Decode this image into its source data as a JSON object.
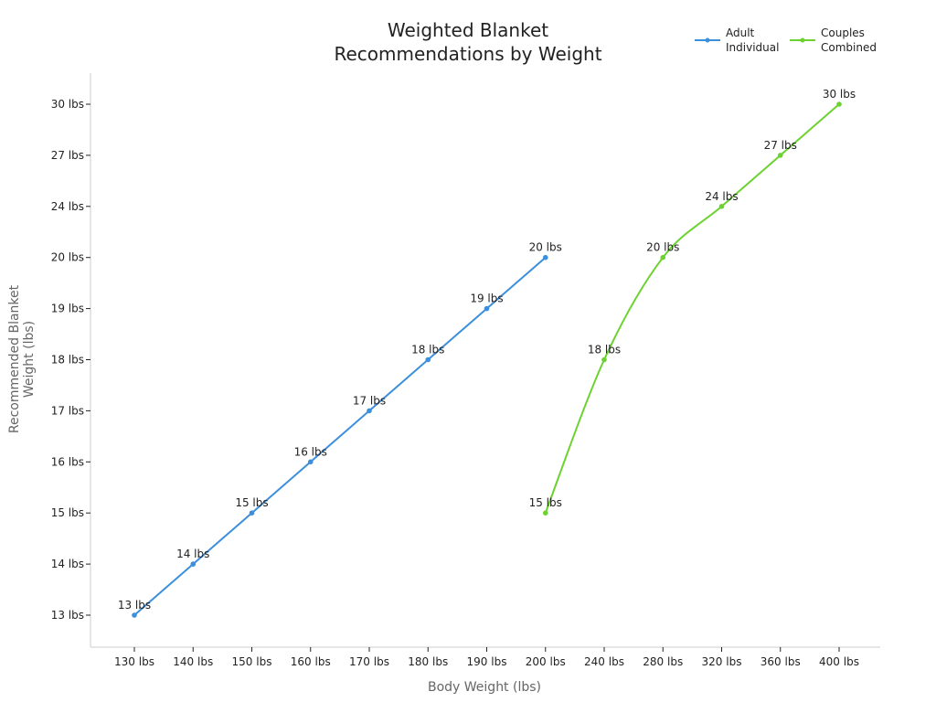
{
  "chart_data": {
    "type": "line",
    "title": [
      "Weighted Blanket",
      "Recommendations by Weight"
    ],
    "xlabel": "Body Weight (lbs)",
    "ylabel": [
      "Recommended Blanket",
      "Weight (lbs)"
    ],
    "x_categories": [
      "130 lbs",
      "140 lbs",
      "150 lbs",
      "160 lbs",
      "170 lbs",
      "180 lbs",
      "190 lbs",
      "200 lbs",
      "240 lbs",
      "280 lbs",
      "320 lbs",
      "360 lbs",
      "400 lbs"
    ],
    "y_categories": [
      "13 lbs",
      "14 lbs",
      "15 lbs",
      "16 lbs",
      "17 lbs",
      "18 lbs",
      "19 lbs",
      "20 lbs",
      "24 lbs",
      "27 lbs",
      "30 lbs"
    ],
    "grid": false,
    "legend_position": "top-right",
    "series": [
      {
        "name": [
          "Adult",
          "Individual"
        ],
        "color": "#3b8fdb",
        "points": [
          {
            "x": "130 lbs",
            "y": "13 lbs",
            "label": "13 lbs"
          },
          {
            "x": "140 lbs",
            "y": "14 lbs",
            "label": "14 lbs"
          },
          {
            "x": "150 lbs",
            "y": "15 lbs",
            "label": "15 lbs"
          },
          {
            "x": "160 lbs",
            "y": "16 lbs",
            "label": "16 lbs"
          },
          {
            "x": "170 lbs",
            "y": "17 lbs",
            "label": "17 lbs"
          },
          {
            "x": "180 lbs",
            "y": "18 lbs",
            "label": "18 lbs"
          },
          {
            "x": "190 lbs",
            "y": "19 lbs",
            "label": "19 lbs"
          },
          {
            "x": "200 lbs",
            "y": "20 lbs",
            "label": "20 lbs"
          }
        ]
      },
      {
        "name": [
          "Couples",
          "Combined"
        ],
        "color": "#6cd22f",
        "points": [
          {
            "x": "200 lbs",
            "y": "15 lbs",
            "label": "15 lbs"
          },
          {
            "x": "240 lbs",
            "y": "18 lbs",
            "label": "18 lbs"
          },
          {
            "x": "280 lbs",
            "y": "20 lbs",
            "label": "20 lbs"
          },
          {
            "x": "320 lbs",
            "y": "24 lbs",
            "label": "24 lbs"
          },
          {
            "x": "360 lbs",
            "y": "27 lbs",
            "label": "27 lbs"
          },
          {
            "x": "400 lbs",
            "y": "30 lbs",
            "label": "30 lbs"
          }
        ]
      }
    ]
  }
}
